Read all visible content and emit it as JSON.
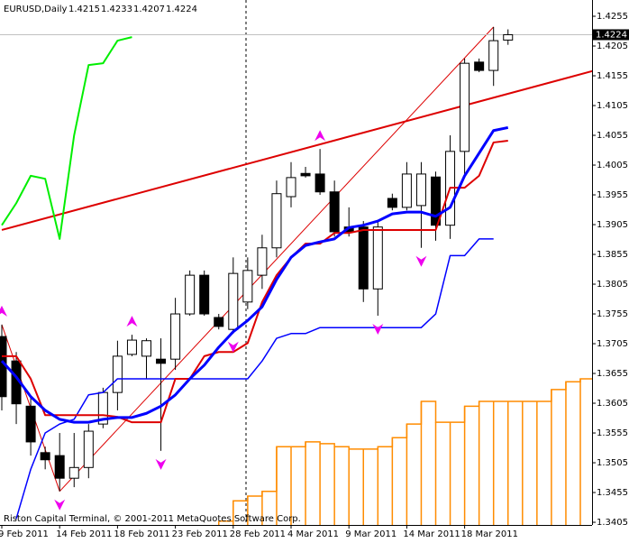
{
  "chart_data": {
    "type": "candlestick",
    "symbol": "EURUSD,Daily",
    "footer": "Riston Capital Terminal, © 2001-2011 MetaQuotes Software Corp.",
    "categories": [
      "9 Feb 2011",
      null,
      null,
      null,
      "14 Feb 2011",
      null,
      null,
      null,
      "18 Feb 2011",
      null,
      null,
      null,
      "23 Feb 2011",
      null,
      null,
      null,
      "28 Feb 2011",
      null,
      null,
      null,
      "4 Mar 2011",
      null,
      null,
      null,
      "9 Mar 2011",
      null,
      null,
      null,
      "14 Mar 2011",
      null,
      null,
      null,
      "18 Mar 2011",
      null,
      null,
      null,
      null,
      null,
      null,
      null,
      null,
      null
    ],
    "open": [
      1.3717,
      1.3676,
      1.36,
      1.3522,
      1.3517,
      1.3479,
      1.3497,
      1.357,
      1.3623,
      1.3687,
      1.3684,
      1.3679,
      1.3679,
      1.3755,
      1.382,
      1.3749,
      1.3729,
      1.3775,
      1.382,
      1.3866,
      1.3952,
      1.3991,
      1.399,
      1.396,
      1.3901,
      1.3901,
      1.3797,
      1.3949,
      1.3934,
      1.3937,
      1.3985,
      1.3904,
      1.4028,
      1.4178,
      1.4164,
      1.4215,
      null,
      null,
      null,
      null,
      null,
      null
    ],
    "high": [
      1.3737,
      1.3691,
      1.3616,
      1.3532,
      1.3555,
      1.3555,
      1.357,
      1.3631,
      1.371,
      1.372,
      1.3714,
      1.3714,
      1.3782,
      1.3828,
      1.3828,
      1.3755,
      1.385,
      1.385,
      1.3888,
      1.3979,
      1.401,
      1.4002,
      1.4032,
      1.3979,
      1.3934,
      1.3911,
      1.3911,
      1.3957,
      1.401,
      1.401,
      1.3994,
      1.4055,
      1.4184,
      1.4184,
      1.4237,
      1.4233,
      null,
      null,
      null,
      null,
      null,
      null
    ],
    "low": [
      1.3593,
      1.357,
      1.3517,
      1.3494,
      1.3457,
      1.3464,
      1.3479,
      1.3563,
      1.3593,
      1.3684,
      1.3646,
      1.3525,
      1.3661,
      1.3752,
      1.3752,
      1.3729,
      1.3722,
      1.3763,
      1.3797,
      1.385,
      1.3934,
      1.3984,
      1.3955,
      1.3885,
      1.3885,
      1.3775,
      1.3752,
      1.3929,
      1.3929,
      1.3866,
      1.3878,
      1.3881,
      1.3984,
      1.4161,
      1.4138,
      1.4207,
      null,
      null,
      null,
      null,
      null,
      null
    ],
    "close": [
      1.3616,
      1.3604,
      1.354,
      1.351,
      1.3479,
      1.3497,
      1.3558,
      1.3623,
      1.3684,
      1.3711,
      1.371,
      1.3672,
      1.3755,
      1.382,
      1.3755,
      1.3734,
      1.3823,
      1.3828,
      1.3866,
      1.3957,
      1.3984,
      1.3987,
      1.396,
      1.3893,
      1.3893,
      1.3797,
      1.3901,
      1.3934,
      1.399,
      1.399,
      1.3904,
      1.4028,
      1.4176,
      1.4164,
      1.4214,
      1.4224,
      null,
      null,
      null,
      null,
      null,
      null
    ],
    "overlays": [
      {
        "color": "#00ee00",
        "width": 2,
        "values": [
          1.3904,
          1.3941,
          1.3987,
          1.3982,
          1.3881,
          1.4055,
          1.4173,
          1.4176,
          1.4214,
          1.422,
          null,
          null,
          null,
          null,
          null,
          null,
          null,
          null,
          null,
          null,
          null,
          null,
          null,
          null,
          null,
          null,
          null,
          null,
          null,
          null,
          null,
          null,
          null,
          null,
          null,
          null,
          null,
          null,
          null,
          null,
          null,
          null
        ]
      },
      {
        "color": "#0000ff",
        "width": 1.5,
        "values": [
          null,
          1.3411,
          1.3494,
          1.3555,
          1.357,
          1.3578,
          1.3619,
          1.3623,
          1.3646,
          1.3646,
          1.3646,
          1.3646,
          1.3646,
          1.3646,
          1.3646,
          1.3646,
          1.3646,
          1.3646,
          1.3676,
          1.3714,
          1.3722,
          1.3722,
          1.3732,
          1.3732,
          1.3732,
          1.3732,
          1.3732,
          1.3732,
          1.3732,
          1.3732,
          1.3755,
          1.3853,
          1.3853,
          1.3881,
          1.3881,
          null,
          null,
          null,
          null,
          null,
          null,
          null
        ]
      },
      {
        "color": "#dd0000",
        "width": 2,
        "values": [
          1.3684,
          1.3684,
          1.3646,
          1.3585,
          1.3585,
          1.3585,
          1.3585,
          1.3585,
          1.3582,
          1.3573,
          1.3573,
          1.3573,
          1.3646,
          1.3646,
          1.3684,
          1.3691,
          1.3691,
          1.3706,
          1.3775,
          1.382,
          1.385,
          1.3873,
          1.3873,
          1.3891,
          1.3891,
          1.3896,
          1.3896,
          1.3896,
          1.3896,
          1.3896,
          1.3896,
          1.3967,
          1.3967,
          1.3987,
          1.4043,
          1.4046,
          null,
          null,
          null,
          null,
          null,
          null
        ]
      },
      {
        "color": "#0000ff",
        "width": 3,
        "values": [
          1.3676,
          1.3649,
          1.3616,
          1.3593,
          1.3578,
          1.3573,
          1.3573,
          1.3578,
          1.3581,
          1.3581,
          1.3588,
          1.36,
          1.3619,
          1.3646,
          1.3669,
          1.3699,
          1.3725,
          1.3744,
          1.3767,
          1.3813,
          1.385,
          1.387,
          1.3876,
          1.3881,
          1.39,
          1.3904,
          1.3911,
          1.3923,
          1.3926,
          1.3926,
          1.3919,
          1.3934,
          1.3987,
          1.4025,
          1.4063,
          1.4068,
          null,
          null,
          null,
          null,
          null,
          null
        ]
      }
    ],
    "cloud": {
      "color": "#ff8c00",
      "values": [
        null,
        null,
        null,
        null,
        null,
        null,
        null,
        null,
        null,
        null,
        null,
        null,
        null,
        null,
        null,
        1.3407,
        1.3441,
        1.3449,
        1.3457,
        1.3532,
        1.3532,
        1.354,
        1.3537,
        1.3532,
        1.3528,
        1.3528,
        1.3532,
        1.3547,
        1.357,
        1.3608,
        1.3573,
        1.3573,
        1.36,
        1.3608,
        1.3608,
        1.3608,
        1.3608,
        1.3608,
        1.3628,
        1.3641,
        1.3646,
        1.3661
      ]
    },
    "fractals": {
      "color": "#ee00ee",
      "up": [
        1.3737,
        null,
        null,
        null,
        null,
        null,
        null,
        null,
        null,
        1.372,
        null,
        null,
        null,
        null,
        null,
        null,
        null,
        null,
        null,
        null,
        null,
        null,
        1.4032,
        null,
        null,
        null,
        null,
        null,
        null,
        null,
        null,
        null,
        null,
        null,
        null,
        null,
        null,
        null,
        null,
        null,
        null,
        null
      ],
      "down": [
        null,
        null,
        null,
        null,
        1.3457,
        null,
        null,
        null,
        null,
        null,
        null,
        1.3525,
        null,
        null,
        null,
        null,
        1.3722,
        null,
        null,
        null,
        null,
        null,
        null,
        null,
        null,
        null,
        1.3752,
        null,
        null,
        1.3866,
        null,
        null,
        null,
        null,
        null,
        null,
        null,
        null,
        null,
        null,
        null,
        null
      ]
    },
    "trendlines": [
      {
        "color": "#dd0000",
        "width": 2,
        "points": [
          [
            0,
            1.3896
          ],
          [
            41,
            1.4164
          ]
        ]
      },
      {
        "color": "#dd0000",
        "width": 1,
        "points": [
          [
            0,
            1.3737
          ],
          [
            4,
            1.3457
          ]
        ]
      },
      {
        "color": "#dd0000",
        "width": 1,
        "points": [
          [
            4,
            1.3457
          ],
          [
            34,
            1.4237
          ]
        ]
      }
    ],
    "ylim": [
      1.34005,
      1.42823
    ],
    "yticks": [
      1.4255,
      1.4205,
      1.4155,
      1.4105,
      1.4055,
      1.4005,
      1.3955,
      1.3905,
      1.3855,
      1.3805,
      1.3755,
      1.3705,
      1.3655,
      1.3605,
      1.3555,
      1.3505,
      1.3455,
      1.3405
    ],
    "up_color": "#ffffff",
    "down_color": "#000000"
  }
}
